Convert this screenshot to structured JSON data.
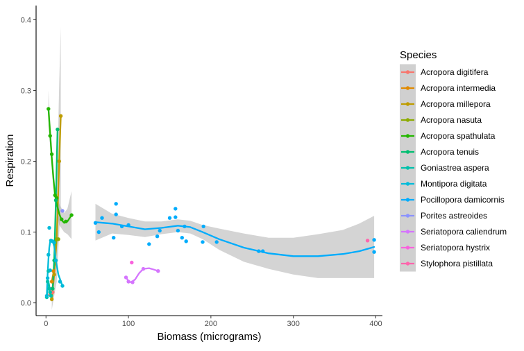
{
  "chart_data": {
    "type": "scatter",
    "xlabel": "Biomass (micrograms)",
    "ylabel": "Respiration",
    "xlim": [
      -12,
      408
    ],
    "ylim": [
      -0.018,
      0.42
    ],
    "x_ticks": [
      0,
      100,
      200,
      300,
      400
    ],
    "y_ticks": [
      0.0,
      0.1,
      0.2,
      0.3,
      0.4
    ],
    "x_tick_labels": [
      "0",
      "100",
      "200",
      "300",
      "400"
    ],
    "y_tick_labels": [
      "0.0",
      "0.1",
      "0.2",
      "0.3",
      "0.4"
    ],
    "grid": false,
    "smoother": "loess with grey confidence band",
    "legend": {
      "title": "Species",
      "placement": "right",
      "entries": [
        "Acropora digitifera",
        "Acropora intermedia",
        "Acropora millepora",
        "Acropora nasuta",
        "Acropora spathulata",
        "Acropora tenuis",
        "Goniastrea aspera",
        "Montipora digitata",
        "Pocillopora damicornis",
        "Porites astreoides",
        "Seriatopora caliendrum",
        "Seriatopora hystrix",
        "Stylophora pistillata"
      ]
    },
    "series": [
      {
        "name": "Acropora digitifera",
        "color": "#F8766D",
        "points": [
          [
            5,
            0.012
          ],
          [
            7,
            0.02
          ],
          [
            8,
            0.015
          ]
        ],
        "fit": [
          [
            5,
            0.012
          ],
          [
            6,
            0.016
          ],
          [
            8,
            0.015
          ]
        ],
        "band": []
      },
      {
        "name": "Acropora intermedia",
        "color": "#E18A00",
        "points": [
          [
            7,
            0.03
          ],
          [
            9,
            0.045
          ],
          [
            12,
            0.06
          ]
        ],
        "fit": [
          [
            7,
            0.03
          ],
          [
            9.5,
            0.045
          ],
          [
            12,
            0.06
          ]
        ],
        "band": []
      },
      {
        "name": "Acropora millepora",
        "color": "#BE9C00",
        "points": [
          [
            7,
            0.005
          ],
          [
            10,
            0.04
          ],
          [
            13,
            0.09
          ],
          [
            16,
            0.2
          ],
          [
            18,
            0.264
          ]
        ],
        "fit": [
          [
            7,
            0.005
          ],
          [
            10,
            0.04
          ],
          [
            13,
            0.09
          ],
          [
            16,
            0.2
          ],
          [
            18,
            0.264
          ]
        ],
        "band": [
          [
            7,
            -0.01,
            0.02
          ],
          [
            10,
            0.01,
            0.07
          ],
          [
            13,
            0.03,
            0.15
          ],
          [
            16,
            0.1,
            0.31
          ],
          [
            18,
            0.14,
            0.39
          ]
        ]
      },
      {
        "name": "Acropora nasuta",
        "color": "#8CAB00",
        "points": [
          [
            11,
            0.085
          ],
          [
            13,
            0.09
          ],
          [
            15,
            0.09
          ]
        ],
        "fit": [
          [
            11,
            0.085
          ],
          [
            13,
            0.088
          ],
          [
            15,
            0.09
          ]
        ],
        "band": []
      },
      {
        "name": "Acropora spathulata",
        "color": "#24B700",
        "points": [
          [
            3,
            0.274
          ],
          [
            5,
            0.236
          ],
          [
            7,
            0.21
          ],
          [
            11,
            0.152
          ],
          [
            13,
            0.148
          ],
          [
            19,
            0.118
          ],
          [
            24,
            0.115
          ],
          [
            31,
            0.124
          ]
        ],
        "fit": [
          [
            3,
            0.274
          ],
          [
            5,
            0.24
          ],
          [
            7,
            0.205
          ],
          [
            9,
            0.175
          ],
          [
            11,
            0.152
          ],
          [
            13,
            0.14
          ],
          [
            16,
            0.126
          ],
          [
            19,
            0.117
          ],
          [
            22,
            0.113
          ],
          [
            26,
            0.115
          ],
          [
            31,
            0.124
          ]
        ],
        "band": [
          [
            3,
            0.25,
            0.3
          ],
          [
            7,
            0.19,
            0.22
          ],
          [
            11,
            0.14,
            0.165
          ],
          [
            16,
            0.11,
            0.14
          ],
          [
            22,
            0.1,
            0.127
          ],
          [
            26,
            0.097,
            0.133
          ],
          [
            31,
            0.09,
            0.158
          ]
        ]
      },
      {
        "name": "Acropora tenuis",
        "color": "#00BE70",
        "points": [
          [
            8,
            0.02
          ],
          [
            10,
            0.06
          ],
          [
            12,
            0.145
          ],
          [
            14,
            0.245
          ]
        ],
        "fit": [
          [
            8,
            0.02
          ],
          [
            10,
            0.06
          ],
          [
            12,
            0.145
          ],
          [
            14,
            0.245
          ]
        ],
        "band": []
      },
      {
        "name": "Goniastrea aspera",
        "color": "#00C1AB",
        "points": [
          [
            1,
            0.008
          ],
          [
            2,
            0.03
          ],
          [
            3,
            0.045
          ],
          [
            4,
            0.02
          ],
          [
            5,
            0.015
          ],
          [
            6,
            0.01
          ]
        ],
        "fit": [
          [
            1,
            0.008
          ],
          [
            2,
            0.022
          ],
          [
            3,
            0.03
          ],
          [
            4,
            0.024
          ],
          [
            5,
            0.016
          ],
          [
            6,
            0.01
          ]
        ],
        "band": []
      },
      {
        "name": "Montipora digitata",
        "color": "#00BBDA",
        "points": [
          [
            1,
            0.01
          ],
          [
            2,
            0.035
          ],
          [
            3,
            0.068
          ],
          [
            4,
            0.106
          ],
          [
            5,
            0.046
          ],
          [
            6,
            0.088
          ],
          [
            8,
            0.087
          ],
          [
            10,
            0.085
          ],
          [
            12,
            0.06
          ],
          [
            17,
            0.03
          ],
          [
            20,
            0.024
          ]
        ],
        "fit": [
          [
            1,
            0.01
          ],
          [
            2,
            0.04
          ],
          [
            3,
            0.062
          ],
          [
            4,
            0.078
          ],
          [
            5,
            0.086
          ],
          [
            6,
            0.088
          ],
          [
            8,
            0.087
          ],
          [
            10,
            0.08
          ],
          [
            12,
            0.06
          ],
          [
            15,
            0.04
          ],
          [
            20,
            0.024
          ]
        ],
        "band": []
      },
      {
        "name": "Pocillopora damicornis",
        "color": "#00ACFC",
        "points": [
          [
            60,
            0.113
          ],
          [
            64,
            0.1
          ],
          [
            68,
            0.12
          ],
          [
            82,
            0.092
          ],
          [
            85,
            0.14
          ],
          [
            85,
            0.125
          ],
          [
            92,
            0.108
          ],
          [
            100,
            0.11
          ],
          [
            125,
            0.083
          ],
          [
            135,
            0.094
          ],
          [
            138,
            0.102
          ],
          [
            150,
            0.12
          ],
          [
            157,
            0.133
          ],
          [
            157,
            0.121
          ],
          [
            160,
            0.102
          ],
          [
            165,
            0.092
          ],
          [
            168,
            0.108
          ],
          [
            170,
            0.087
          ],
          [
            190,
            0.086
          ],
          [
            191,
            0.108
          ],
          [
            207,
            0.086
          ],
          [
            258,
            0.073
          ],
          [
            263,
            0.073
          ],
          [
            398,
            0.089
          ],
          [
            398,
            0.072
          ]
        ],
        "fit": [
          [
            60,
            0.114
          ],
          [
            80,
            0.112
          ],
          [
            100,
            0.108
          ],
          [
            120,
            0.104
          ],
          [
            140,
            0.106
          ],
          [
            160,
            0.109
          ],
          [
            175,
            0.107
          ],
          [
            190,
            0.1
          ],
          [
            210,
            0.09
          ],
          [
            240,
            0.078
          ],
          [
            270,
            0.07
          ],
          [
            300,
            0.066
          ],
          [
            330,
            0.066
          ],
          [
            360,
            0.069
          ],
          [
            380,
            0.073
          ],
          [
            398,
            0.079
          ]
        ],
        "band": [
          [
            60,
            0.088,
            0.14
          ],
          [
            80,
            0.098,
            0.126
          ],
          [
            100,
            0.096,
            0.12
          ],
          [
            120,
            0.093,
            0.115
          ],
          [
            140,
            0.097,
            0.115
          ],
          [
            160,
            0.1,
            0.118
          ],
          [
            175,
            0.098,
            0.116
          ],
          [
            190,
            0.09,
            0.11
          ],
          [
            210,
            0.075,
            0.105
          ],
          [
            240,
            0.058,
            0.098
          ],
          [
            270,
            0.048,
            0.092
          ],
          [
            300,
            0.04,
            0.092
          ],
          [
            330,
            0.035,
            0.097
          ],
          [
            360,
            0.035,
            0.103
          ],
          [
            380,
            0.035,
            0.112
          ],
          [
            398,
            0.035,
            0.123
          ]
        ]
      },
      {
        "name": "Porites astreoides",
        "color": "#8B93FF",
        "points": [
          [
            20,
            0.13
          ]
        ],
        "fit": [],
        "band": []
      },
      {
        "name": "Seriatopora caliendrum",
        "color": "#D575FE",
        "points": [
          [
            97,
            0.036
          ],
          [
            100,
            0.03
          ],
          [
            105,
            0.029
          ],
          [
            118,
            0.048
          ],
          [
            136,
            0.045
          ]
        ],
        "fit": [
          [
            97,
            0.036
          ],
          [
            100,
            0.031
          ],
          [
            103,
            0.029
          ],
          [
            108,
            0.033
          ],
          [
            113,
            0.042
          ],
          [
            118,
            0.048
          ],
          [
            125,
            0.049
          ],
          [
            131,
            0.047
          ],
          [
            136,
            0.045
          ]
        ],
        "band": []
      },
      {
        "name": "Seriatopora hystrix",
        "color": "#F962DD",
        "points": [
          [
            104,
            0.057
          ]
        ],
        "fit": [],
        "band": []
      },
      {
        "name": "Stylophora pistillata",
        "color": "#FF65AC",
        "points": [
          [
            390,
            0.088
          ]
        ],
        "fit": [],
        "band": []
      }
    ]
  }
}
